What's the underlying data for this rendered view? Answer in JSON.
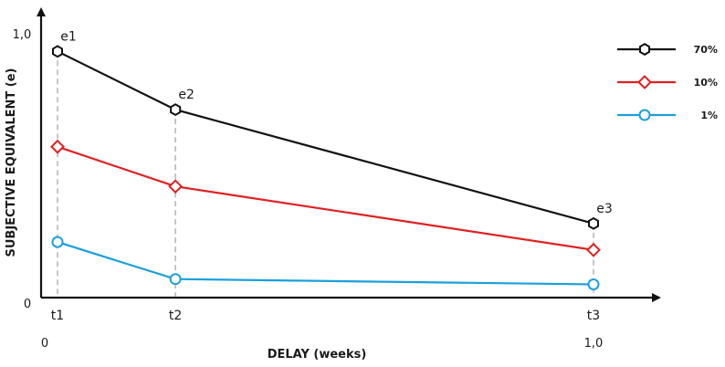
{
  "chart_data": {
    "type": "line",
    "title": "",
    "xlabel": "DELAY (weeks)",
    "ylabel": "SUBJECTIVE EQUIVALENT (e)",
    "xlim": [
      0,
      1.0
    ],
    "ylim": [
      0,
      1.0
    ],
    "x_tick_labels": {
      "min": "0",
      "max": "1,0"
    },
    "y_tick_labels": {
      "min": "0",
      "max": "1,0"
    },
    "x": [
      0.0,
      0.22,
      1.0
    ],
    "x_point_labels": [
      "t1",
      "t2",
      "t3"
    ],
    "series": [
      {
        "name": "70%",
        "values": [
          0.93,
          0.71,
          0.28
        ],
        "color": "#111111",
        "marker": "hexagon",
        "point_labels": [
          "e1",
          "e2",
          "e3"
        ]
      },
      {
        "name": "10%",
        "values": [
          0.57,
          0.42,
          0.18
        ],
        "color": "#e02020",
        "marker": "diamond"
      },
      {
        "name": "1%",
        "values": [
          0.21,
          0.07,
          0.05
        ],
        "color": "#1aa0dc",
        "marker": "circle"
      }
    ],
    "grid": false,
    "legend": "top-right"
  }
}
